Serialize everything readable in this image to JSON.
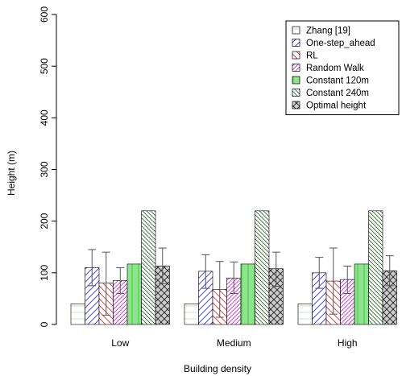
{
  "chart_data": {
    "type": "bar",
    "title": "",
    "xlabel": "Building density",
    "ylabel": "Height (m)",
    "ylim": [
      0,
      600
    ],
    "yticks": [
      0,
      100,
      200,
      300,
      400,
      500,
      600
    ],
    "categories": [
      "Low",
      "Medium",
      "High"
    ],
    "legend_position": "top-right",
    "grid": false,
    "series": [
      {
        "name": "Zhang [19]",
        "values": [
          40,
          40,
          40
        ],
        "error": null,
        "color": "#b8e6b8",
        "pattern": "hlines"
      },
      {
        "name": "One-step_ahead",
        "values": [
          110,
          103,
          100
        ],
        "error": [
          [
            75,
            145
          ],
          [
            70,
            135
          ],
          [
            70,
            130
          ]
        ],
        "color": "#3333cc",
        "pattern": "diag-right"
      },
      {
        "name": "RL",
        "values": [
          80,
          68,
          84
        ],
        "error": [
          [
            18,
            140
          ],
          [
            14,
            122
          ],
          [
            20,
            148
          ]
        ],
        "color": "#cc3333",
        "pattern": "diag-left"
      },
      {
        "name": "Random Walk",
        "values": [
          85,
          90,
          87
        ],
        "error": [
          [
            60,
            110
          ],
          [
            60,
            121
          ],
          [
            60,
            113
          ]
        ],
        "color": "#cc33cc",
        "pattern": "diag-right-dense"
      },
      {
        "name": "Constant 120m",
        "values": [
          117,
          117,
          117
        ],
        "error": null,
        "color": "#33cc33",
        "pattern": "vlines"
      },
      {
        "name": "Constant 240m",
        "values": [
          220,
          220,
          220
        ],
        "error": null,
        "color": "#336633",
        "pattern": "diag-left-dense"
      },
      {
        "name": "Optimal height",
        "values": [
          113,
          108,
          104
        ],
        "error": [
          [
            79,
            148
          ],
          [
            74,
            140
          ],
          [
            75,
            133
          ]
        ],
        "color": "#222222",
        "pattern": "crosshatch"
      }
    ]
  }
}
